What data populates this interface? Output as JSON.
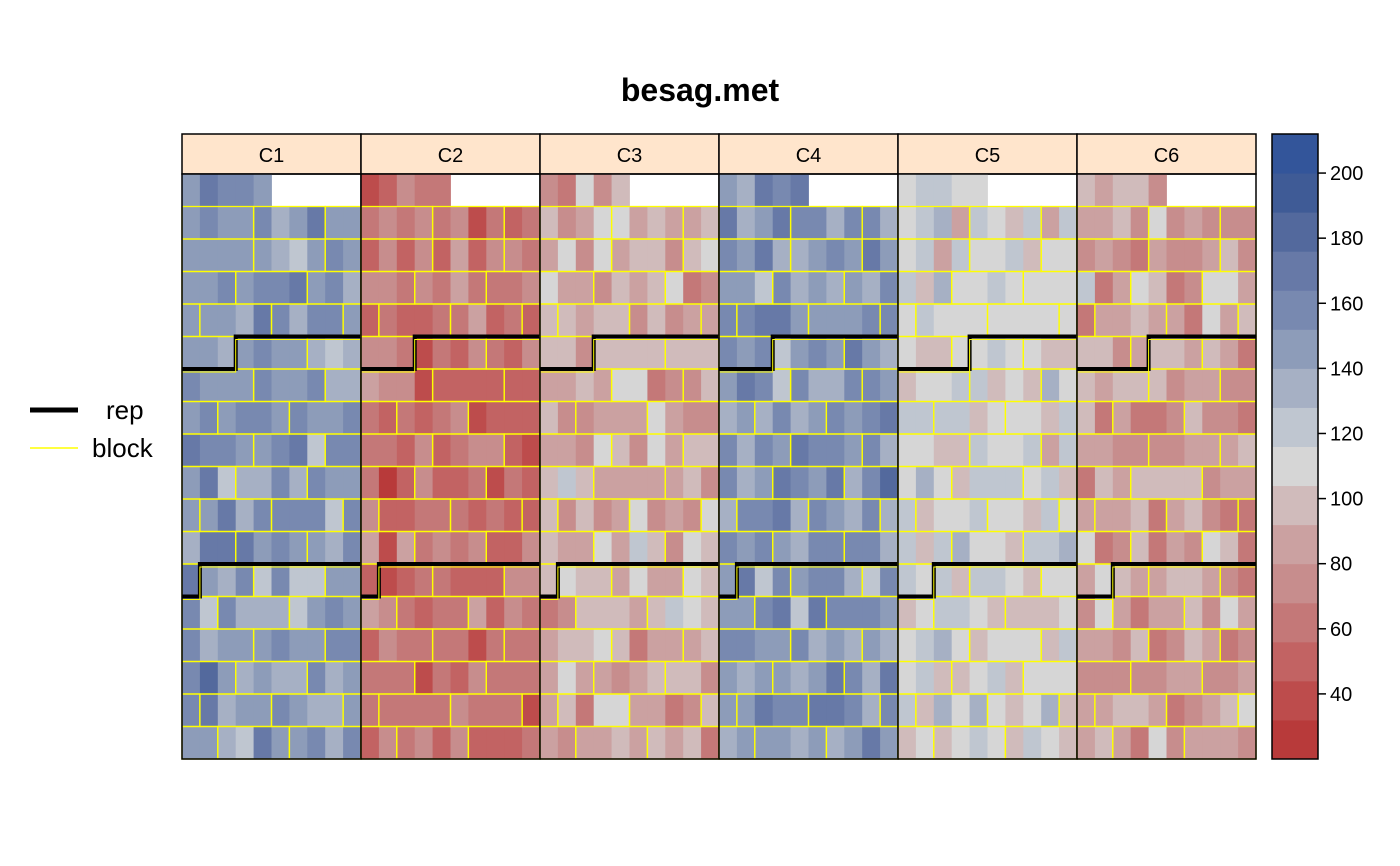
{
  "chart_data": {
    "type": "heatmap",
    "title": "besag.met",
    "panels": [
      "C1",
      "C2",
      "C3",
      "C4",
      "C5",
      "C6"
    ],
    "rows_per_panel": 18,
    "cols_per_panel": 10,
    "missing_cells": [
      {
        "row": 0,
        "col_from": 5,
        "col_to": 9
      }
    ],
    "legend": {
      "position": "left",
      "entries": [
        {
          "label": "rep",
          "color": "#000000",
          "line": "thick"
        },
        {
          "label": "block",
          "color": "#ffff00",
          "line": "thin"
        }
      ]
    },
    "colorbar": {
      "range": [
        20,
        212
      ],
      "ticks": [
        40,
        60,
        80,
        100,
        120,
        140,
        160,
        180,
        200
      ],
      "ticks_labels": [
        "40",
        "60",
        "80",
        "100",
        "120",
        "140",
        "160",
        "180",
        "200"
      ],
      "colors": [
        "#b83a3a",
        "#bd4c4c",
        "#c26363",
        "#c47878",
        "#c78d8d",
        "#cba1a1",
        "#d0bbbb",
        "#d6d6d6",
        "#bfc6d0",
        "#a6b0c4",
        "#8d9cb9",
        "#7889b0",
        "#6779a7",
        "#53699d",
        "#3f5b96",
        "#33559a"
      ]
    },
    "panel_levels": [
      {
        "panel": "C1",
        "mean": 148,
        "sd": 17
      },
      {
        "panel": "C2",
        "mean": 60,
        "sd": 15
      },
      {
        "panel": "C3",
        "mean": 92,
        "sd": 19
      },
      {
        "panel": "C4",
        "mean": 150,
        "sd": 17
      },
      {
        "panel": "C5",
        "mean": 110,
        "sd": 15
      },
      {
        "panel": "C6",
        "mean": 84,
        "sd": 20
      }
    ],
    "strip_color": "#ffe5cc",
    "block_line_color": "#ffff00",
    "rep_line_color": "#000000",
    "xlabel": "",
    "ylabel": ""
  }
}
